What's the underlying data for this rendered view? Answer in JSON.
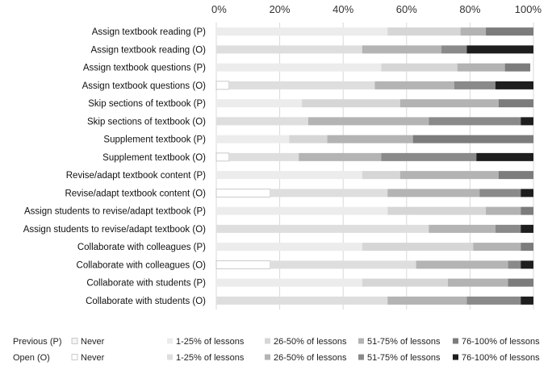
{
  "chart_data": {
    "type": "bar",
    "orientation": "horizontal",
    "stacked": true,
    "x_unit": "%",
    "xlim": [
      0,
      100
    ],
    "x_ticks": [
      "0%",
      "20%",
      "40%",
      "60%",
      "80%",
      "100%"
    ],
    "grid": true,
    "legend_position": "bottom",
    "categories": [
      "Assign textbook reading (P)",
      "Assign textbook reading  (O)",
      "Assign textbook questions (P)",
      "Assign textbook questions (O)",
      "Skip sections of textbook (P)",
      "Skip sections of textbook (O)",
      "Supplement textbook (P)",
      "Supplement textbook (O)",
      "Revise/adapt textbook content (P)",
      "Revise/adapt textbook content (O)",
      "Assign students to revise/adapt textbook (P)",
      "Assign students to revise/adapt textbook (O)",
      "Collaborate with colleagues (P)",
      "Collaborate with colleagues (O)",
      "Collaborate with students (P)",
      "Collaborate with students (O)"
    ],
    "series": [
      {
        "name": "Never",
        "values": [
          0,
          0,
          0,
          4,
          0,
          0,
          0,
          4,
          0,
          17,
          0,
          0,
          0,
          17,
          0,
          0
        ]
      },
      {
        "name": "1-25% of lessons",
        "values": [
          54,
          46,
          52,
          46,
          27,
          29,
          23,
          22,
          46,
          37,
          54,
          67,
          46,
          46,
          46,
          54
        ]
      },
      {
        "name": "26-50% of lessons",
        "values": [
          23,
          25,
          24,
          25,
          31,
          38,
          12,
          26,
          12,
          29,
          31,
          21,
          35,
          29,
          27,
          25
        ]
      },
      {
        "name": "51-75% of lessons",
        "values": [
          8,
          8,
          15,
          13,
          31,
          29,
          27,
          30,
          31,
          13,
          11,
          8,
          15,
          4,
          19,
          17
        ]
      },
      {
        "name": "76-100% of lessons",
        "values": [
          15,
          21,
          8,
          12,
          11,
          4,
          38,
          18,
          11,
          4,
          4,
          4,
          4,
          4,
          8,
          4
        ]
      }
    ],
    "colors_previous": [
      "#f4f4f4",
      "#ececec",
      "#d6d6d6",
      "#b3b3b3",
      "#7c7c7c"
    ],
    "colors_open": [
      "#ffffff",
      "#dedede",
      "#b4b4b4",
      "#8a8a8a",
      "#1e1e1e"
    ]
  },
  "legend": {
    "previous_label": "Previous (P)",
    "open_label": "Open (O)",
    "items": [
      "Never",
      "1-25% of lessons",
      "26-50% of lessons",
      "51-75% of lessons",
      "76-100% of lessons"
    ]
  }
}
